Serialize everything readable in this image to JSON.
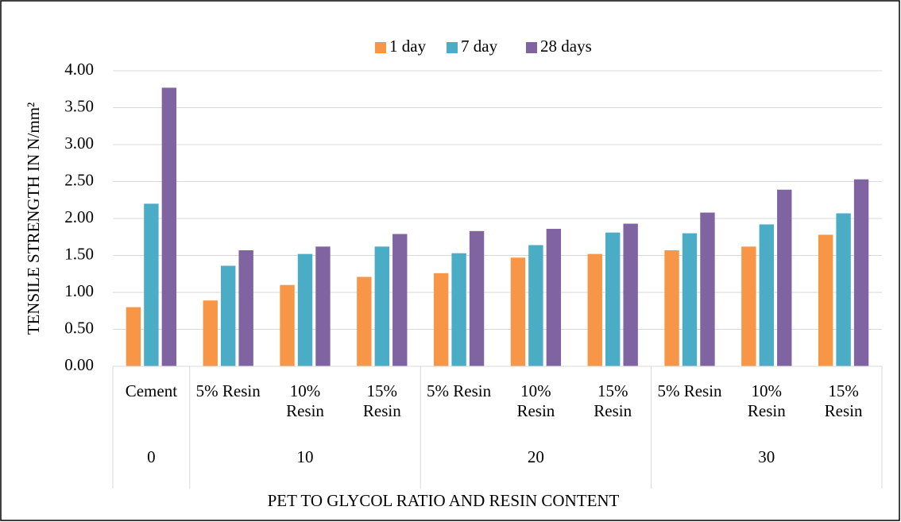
{
  "chart_data": {
    "type": "bar",
    "y_label": "TENSILE STRENGTH IN N/mm²",
    "x_label": "PET TO GLYCOL RATIO AND RESIN CONTENT",
    "groups": [
      {
        "label": "0",
        "categories": [
          "Cement"
        ]
      },
      {
        "label": "10",
        "categories": [
          "5% Resin",
          "10% Resin",
          "15% Resin"
        ]
      },
      {
        "label": "20",
        "categories": [
          "5% Resin",
          "10% Resin",
          "15% Resin"
        ]
      },
      {
        "label": "30",
        "categories": [
          "5% Resin",
          "10% Resin",
          "15% Resin"
        ]
      }
    ],
    "series": [
      {
        "name": "1 day",
        "color": "#f79646",
        "values": [
          0.8,
          0.89,
          1.1,
          1.21,
          1.26,
          1.47,
          1.52,
          1.57,
          1.62,
          1.78
        ]
      },
      {
        "name": "7 day",
        "color": "#4bacc6",
        "values": [
          2.2,
          1.36,
          1.52,
          1.62,
          1.53,
          1.64,
          1.81,
          1.8,
          1.92,
          2.07
        ]
      },
      {
        "name": "28 days",
        "color": "#8064a2",
        "values": [
          3.77,
          1.57,
          1.62,
          1.79,
          1.83,
          1.86,
          1.93,
          2.08,
          2.39,
          2.53
        ]
      }
    ],
    "ylim": [
      0,
      4
    ],
    "yticks": [
      {
        "value": 0,
        "label": "0.00"
      },
      {
        "value": 0.5,
        "label": "0.50"
      },
      {
        "value": 1,
        "label": "1.00"
      },
      {
        "value": 1.5,
        "label": "1.50"
      },
      {
        "value": 2,
        "label": "2.00"
      },
      {
        "value": 2.5,
        "label": "2.50"
      },
      {
        "value": 3,
        "label": "3.00"
      },
      {
        "value": 3.5,
        "label": "3.50"
      },
      {
        "value": 4,
        "label": "4.00"
      }
    ],
    "grid": true,
    "legend": "top"
  }
}
